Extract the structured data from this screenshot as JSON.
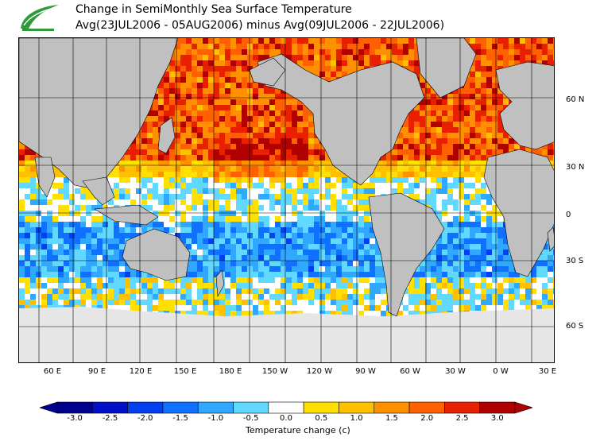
{
  "title": {
    "line1": "Change in SemiMonthly Sea Surface Temperature",
    "line2": "Avg(23JUL2006 - 05AUG2006) minus Avg(09JUL2006 - 22JUL2006)"
  },
  "lat_labels": [
    "60 N",
    "30 N",
    "0",
    "30 S",
    "60 S"
  ],
  "lon_labels": [
    "60 E",
    "90 E",
    "120 E",
    "150 E",
    "180 E",
    "150 W",
    "120 W",
    "90 W",
    "60 W",
    "30 W",
    "0 W",
    "30 E"
  ],
  "colorbar": {
    "ticks": [
      "-3.0",
      "-2.5",
      "-2.0",
      "-1.5",
      "-1.0",
      "-0.5",
      "0.0",
      "0.5",
      "1.0",
      "1.5",
      "2.0",
      "2.5",
      "3.0"
    ],
    "title": "Temperature change  (c)",
    "colors": [
      "#000090",
      "#0010c8",
      "#0040f0",
      "#1070ff",
      "#30a8ff",
      "#60d8ff",
      "#ffffff",
      "#ffe000",
      "#ffc000",
      "#ff9000",
      "#ff6000",
      "#e82000",
      "#b00000"
    ]
  },
  "colors": {
    "land": "#c0c0c0",
    "ice": "#e6e6e6",
    "border": "#000000"
  }
}
